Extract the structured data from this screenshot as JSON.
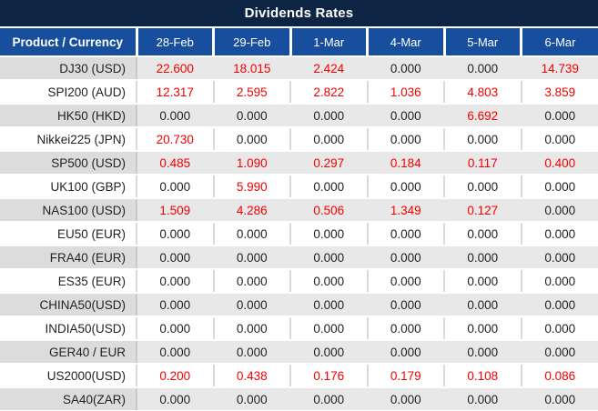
{
  "title": "Dividends Rates",
  "table": {
    "product_header": "Product / Currency",
    "date_headers": [
      "28-Feb",
      "29-Feb",
      "1-Mar",
      "4-Mar",
      "5-Mar",
      "6-Mar"
    ],
    "rows": [
      {
        "product": "DJ30 (USD)",
        "values": [
          "22.600",
          "18.015",
          "2.424",
          "0.000",
          "0.000",
          "14.739"
        ]
      },
      {
        "product": "SPI200 (AUD)",
        "values": [
          "12.317",
          "2.595",
          "2.822",
          "1.036",
          "4.803",
          "3.859"
        ]
      },
      {
        "product": "HK50 (HKD)",
        "values": [
          "0.000",
          "0.000",
          "0.000",
          "0.000",
          "6.692",
          "0.000"
        ]
      },
      {
        "product": "Nikkei225 (JPN)",
        "values": [
          "20.730",
          "0.000",
          "0.000",
          "0.000",
          "0.000",
          "0.000"
        ]
      },
      {
        "product": "SP500 (USD)",
        "values": [
          "0.485",
          "1.090",
          "0.297",
          "0.184",
          "0.117",
          "0.400"
        ]
      },
      {
        "product": "UK100 (GBP)",
        "values": [
          "0.000",
          "5.990",
          "0.000",
          "0.000",
          "0.000",
          "0.000"
        ]
      },
      {
        "product": "NAS100 (USD)",
        "values": [
          "1.509",
          "4.286",
          "0.506",
          "1.349",
          "0.127",
          "0.000"
        ]
      },
      {
        "product": "EU50 (EUR)",
        "values": [
          "0.000",
          "0.000",
          "0.000",
          "0.000",
          "0.000",
          "0.000"
        ]
      },
      {
        "product": "FRA40 (EUR)",
        "values": [
          "0.000",
          "0.000",
          "0.000",
          "0.000",
          "0.000",
          "0.000"
        ]
      },
      {
        "product": "ES35 (EUR)",
        "values": [
          "0.000",
          "0.000",
          "0.000",
          "0.000",
          "0.000",
          "0.000"
        ]
      },
      {
        "product": "CHINA50(USD)",
        "values": [
          "0.000",
          "0.000",
          "0.000",
          "0.000",
          "0.000",
          "0.000"
        ]
      },
      {
        "product": "INDIA50(USD)",
        "values": [
          "0.000",
          "0.000",
          "0.000",
          "0.000",
          "0.000",
          "0.000"
        ]
      },
      {
        "product": "GER40 / EUR",
        "values": [
          "0.000",
          "0.000",
          "0.000",
          "0.000",
          "0.000",
          "0.000"
        ]
      },
      {
        "product": "US2000(USD)",
        "values": [
          "0.200",
          "0.438",
          "0.176",
          "0.179",
          "0.108",
          "0.086"
        ]
      },
      {
        "product": "SA40(ZAR)",
        "values": [
          "0.000",
          "0.000",
          "0.000",
          "0.000",
          "0.000",
          "0.000"
        ]
      }
    ]
  },
  "colors": {
    "title_bar_bg": "#0d2444",
    "header_bg": "#174f9e",
    "positive_value": "#f50000",
    "zero_value": "#222222",
    "stripe_value_bg": "#e8e8e8",
    "stripe_product_bg": "#dcdcdc"
  }
}
